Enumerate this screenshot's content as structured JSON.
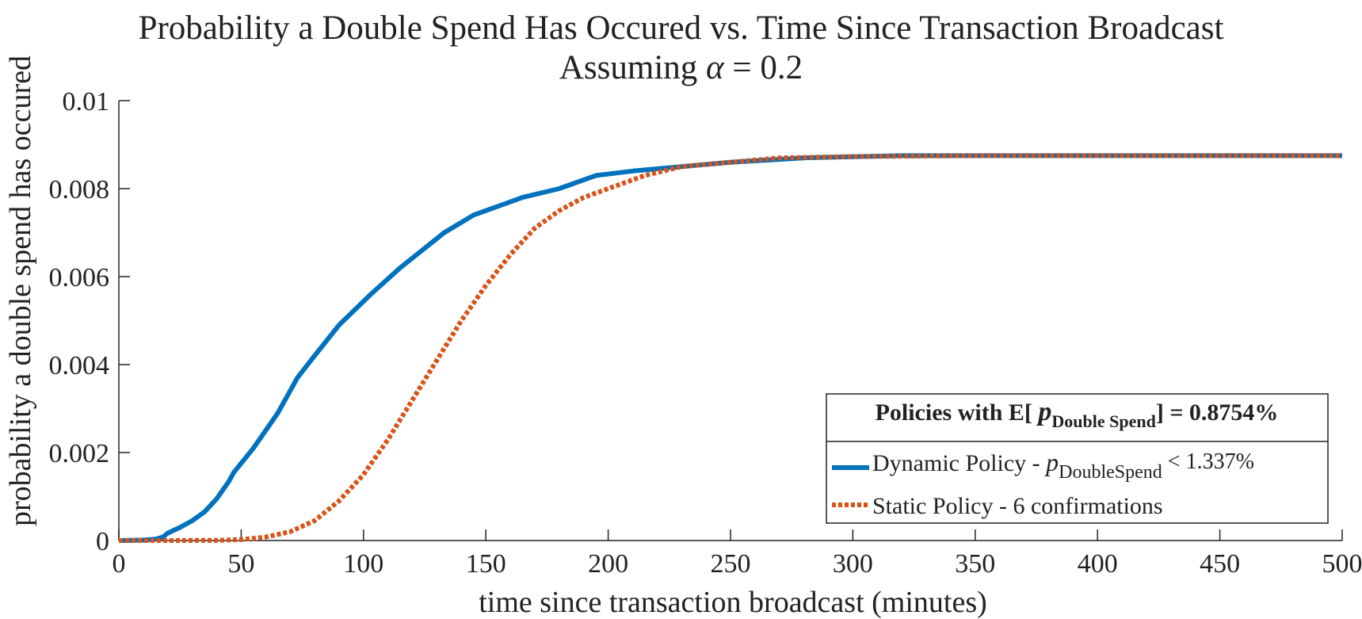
{
  "chart_data": {
    "type": "line",
    "title": "Probability a Double Spend Has Occured vs. Time Since Transaction Broadcast",
    "subtitle_prefix": "Assuming ",
    "subtitle_symbol": "α",
    "subtitle_suffix": " = 0.2",
    "xlabel": "time since transaction broadcast (minutes)",
    "ylabel": "probability a double spend has occured",
    "xlim": [
      0,
      500
    ],
    "ylim": [
      0,
      0.01
    ],
    "xticks": [
      0,
      50,
      100,
      150,
      200,
      250,
      300,
      350,
      400,
      450,
      500
    ],
    "xtick_labels": [
      "0",
      "50",
      "100",
      "150",
      "200",
      "250",
      "300",
      "350",
      "400",
      "450",
      "500"
    ],
    "yticks": [
      0,
      0.002,
      0.004,
      0.006,
      0.008,
      0.01
    ],
    "ytick_labels": [
      "0",
      "0.002",
      "0.004",
      "0.006",
      "0.008",
      "0.01"
    ],
    "grid": false,
    "legend": {
      "placement": "bottom-right",
      "title_prefix": "Policies with E[ ",
      "title_p": "p",
      "title_sub": "Double Spend",
      "title_suffix": "] = 0.8754%",
      "entries": [
        {
          "prefix": "Dynamic Policy -  ",
          "p": "p",
          "sub": "DoubleSpend",
          "suffix": " < 1.337%"
        },
        {
          "prefix": "Static Policy - 6 confirmations",
          "p": "",
          "sub": "",
          "suffix": ""
        }
      ]
    },
    "series": [
      {
        "color": "#0072BD",
        "style": "solid",
        "x": [
          0,
          10,
          15,
          18,
          20,
          25,
          30,
          35,
          40,
          45,
          47,
          55,
          65,
          73,
          80,
          90,
          103,
          115,
          133,
          145,
          165,
          180,
          195,
          210,
          230,
          250,
          280,
          320,
          400,
          500
        ],
        "y": [
          0,
          1e-05,
          3e-05,
          8e-05,
          0.00017,
          0.0003,
          0.00045,
          0.00065,
          0.00095,
          0.00135,
          0.00155,
          0.0021,
          0.0029,
          0.0037,
          0.0042,
          0.0049,
          0.0056,
          0.0062,
          0.007,
          0.0074,
          0.0078,
          0.008,
          0.0083,
          0.0084,
          0.0085,
          0.0086,
          0.0087,
          0.00875,
          0.00875,
          0.00875
        ]
      },
      {
        "color": "#D95319",
        "style": "dotted",
        "x": [
          0,
          20,
          40,
          50,
          60,
          70,
          80,
          90,
          100,
          110,
          120,
          130,
          140,
          150,
          160,
          170,
          180,
          190,
          200,
          215,
          230,
          250,
          270,
          300,
          350,
          400,
          500
        ],
        "y": [
          0,
          0,
          5e-06,
          2e-05,
          8e-05,
          0.0002,
          0.00045,
          0.0009,
          0.0015,
          0.0023,
          0.0032,
          0.0041,
          0.005,
          0.0058,
          0.0065,
          0.0071,
          0.0075,
          0.0078,
          0.008,
          0.0083,
          0.0085,
          0.0086,
          0.0087,
          0.00873,
          0.00875,
          0.00875,
          0.00875
        ]
      }
    ]
  }
}
